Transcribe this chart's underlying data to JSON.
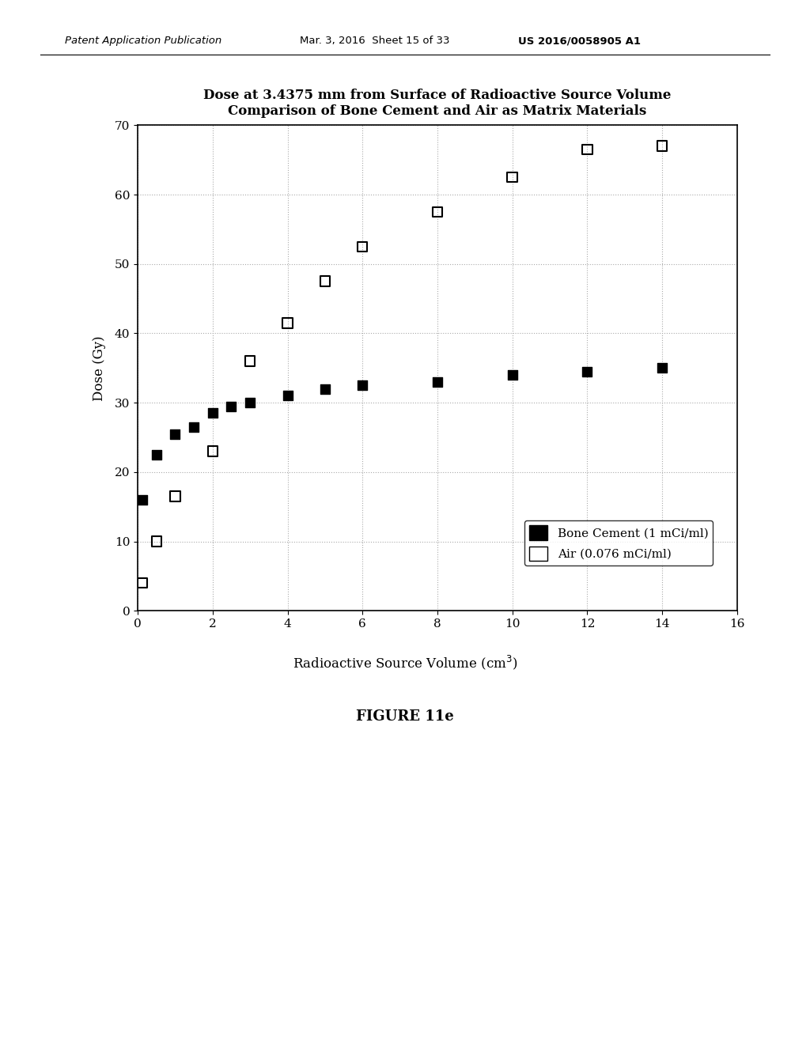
{
  "title_line1": "Dose at 3.4375 mm from Surface of Radioactive Source Volume",
  "title_line2": "Comparison of Bone Cement and Air as Matrix Materials",
  "xlabel": "Radioactive Source Volume (cm",
  "ylabel": "Dose (Gy)",
  "xlim": [
    0,
    16
  ],
  "ylim": [
    0,
    70
  ],
  "xticks": [
    0,
    2,
    4,
    6,
    8,
    10,
    12,
    14,
    16
  ],
  "yticks": [
    0,
    10,
    20,
    30,
    40,
    50,
    60,
    70
  ],
  "bone_cement_x": [
    0.125,
    0.5,
    1.0,
    1.5,
    2.0,
    2.5,
    3.0,
    4.0,
    5.0,
    6.0,
    8.0,
    10.0,
    12.0,
    14.0
  ],
  "bone_cement_y": [
    16.0,
    22.5,
    25.5,
    26.5,
    28.5,
    29.5,
    30.0,
    31.0,
    32.0,
    32.5,
    33.0,
    34.0,
    34.5,
    35.0
  ],
  "air_x": [
    0.125,
    0.5,
    1.0,
    2.0,
    3.0,
    4.0,
    5.0,
    6.0,
    8.0,
    10.0,
    12.0,
    14.0
  ],
  "air_y": [
    4.0,
    10.0,
    16.5,
    23.0,
    36.0,
    41.5,
    47.5,
    52.5,
    57.5,
    62.5,
    66.5,
    67.0
  ],
  "legend_label_bc": "Bone Cement (1 mCi/ml)",
  "legend_label_air": "Air (0.076 mCi/ml)",
  "figure_label": "FIGURE 11e",
  "header_left": "Patent Application Publication",
  "header_mid": "Mar. 3, 2016  Sheet 15 of 33",
  "header_right": "US 2016/0058905 A1",
  "background_color": "#ffffff",
  "marker_size": 9,
  "grid_color": "#aaaaaa",
  "grid_style": ":"
}
